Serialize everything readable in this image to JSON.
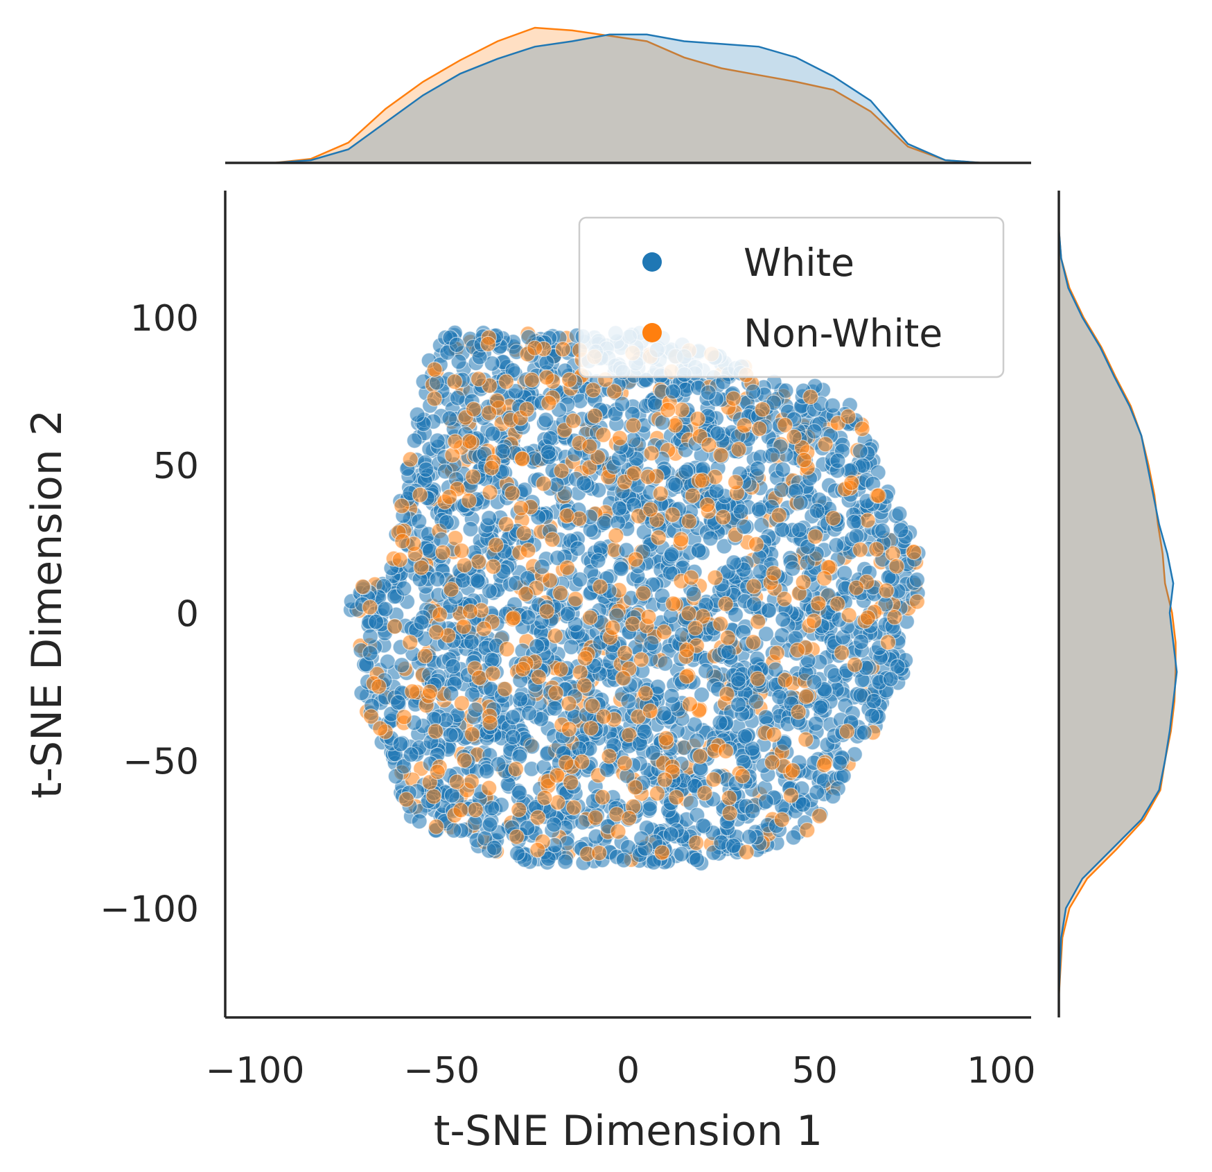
{
  "chart_data": {
    "type": "scatter",
    "subtype": "jointplot",
    "xlabel": "t-SNE Dimension 1",
    "ylabel": "t-SNE Dimension 2",
    "xlim": [
      -108,
      108
    ],
    "ylim": [
      -137,
      143
    ],
    "xticks": [
      -100,
      -50,
      0,
      50,
      100
    ],
    "yticks": [
      -100,
      -50,
      0,
      50,
      100
    ],
    "grid": false,
    "legend_position": "upper-right",
    "point_alpha": 0.55,
    "series": [
      {
        "name": "White",
        "color": "#1f77b4",
        "approx_count": 2600,
        "cloud_extent": {
          "x": [
            -75,
            75
          ],
          "y": [
            -85,
            95
          ]
        }
      },
      {
        "name": "Non-White",
        "color": "#ff7f0e",
        "approx_count": 650,
        "cloud_extent": {
          "x": [
            -70,
            72
          ],
          "y": [
            -86,
            96
          ]
        }
      }
    ],
    "marginal_x_kde": {
      "x": [
        -95,
        -85,
        -75,
        -65,
        -55,
        -45,
        -35,
        -25,
        -15,
        -5,
        5,
        15,
        25,
        35,
        45,
        55,
        65,
        75,
        85,
        95
      ],
      "series": [
        {
          "name": "White",
          "density": [
            0.0,
            0.02,
            0.1,
            0.3,
            0.5,
            0.66,
            0.77,
            0.86,
            0.9,
            0.95,
            0.95,
            0.9,
            0.88,
            0.86,
            0.78,
            0.64,
            0.46,
            0.14,
            0.02,
            0.0
          ]
        },
        {
          "name": "Non-White",
          "density": [
            0.0,
            0.03,
            0.15,
            0.4,
            0.6,
            0.76,
            0.9,
            1.0,
            0.98,
            0.94,
            0.9,
            0.78,
            0.7,
            0.65,
            0.6,
            0.54,
            0.38,
            0.12,
            0.02,
            0.0
          ]
        }
      ]
    },
    "marginal_y_kde": {
      "y": [
        -130,
        -110,
        -100,
        -90,
        -80,
        -70,
        -60,
        -50,
        -40,
        -30,
        -20,
        -10,
        0,
        10,
        20,
        30,
        40,
        50,
        60,
        70,
        80,
        90,
        100,
        110,
        120,
        130
      ],
      "series": [
        {
          "name": "White",
          "density": [
            0.0,
            0.02,
            0.06,
            0.2,
            0.45,
            0.7,
            0.85,
            0.9,
            0.94,
            0.97,
            1.0,
            0.97,
            0.94,
            0.97,
            0.92,
            0.85,
            0.8,
            0.75,
            0.7,
            0.6,
            0.47,
            0.35,
            0.2,
            0.08,
            0.02,
            0.0
          ]
        },
        {
          "name": "Non-White",
          "density": [
            0.0,
            0.03,
            0.09,
            0.24,
            0.49,
            0.72,
            0.86,
            0.9,
            0.95,
            0.98,
            0.99,
            0.99,
            0.96,
            0.9,
            0.88,
            0.84,
            0.81,
            0.76,
            0.7,
            0.61,
            0.48,
            0.36,
            0.21,
            0.09,
            0.02,
            0.0
          ]
        }
      ]
    }
  }
}
